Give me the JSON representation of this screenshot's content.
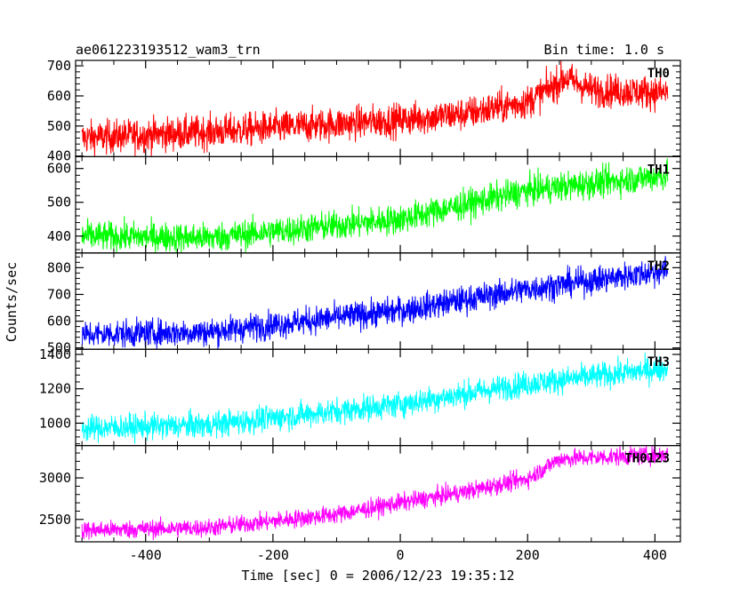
{
  "chart_data": {
    "type": "line",
    "title_left": "ae061223193512_wam3_trn",
    "title_right": "Bin time: 1.0 s",
    "xlabel": "Time [sec] 0 = 2006/12/23 19:35:12",
    "ylabel": "Counts/sec",
    "xlim": [
      -510,
      440
    ],
    "xticks": [
      -400,
      -200,
      0,
      200,
      400
    ],
    "x_range": [
      -500,
      420
    ],
    "panels": [
      {
        "name": "TH0",
        "color": "#ff0000",
        "ylim": [
          398,
          718
        ],
        "yticks": [
          400,
          500,
          600,
          700
        ],
        "trend_x": [
          -500,
          -300,
          0,
          100,
          200,
          260,
          300,
          420
        ],
        "trend_y": [
          460,
          480,
          520,
          540,
          580,
          660,
          620,
          610
        ],
        "noise": 28
      },
      {
        "name": "TH1",
        "color": "#00ff00",
        "ylim": [
          350,
          635
        ],
        "yticks": [
          400,
          500,
          600
        ],
        "trend_x": [
          -500,
          -300,
          0,
          200,
          420
        ],
        "trend_y": [
          400,
          395,
          450,
          535,
          580
        ],
        "noise": 22
      },
      {
        "name": "TH2",
        "color": "#0000ff",
        "ylim": [
          495,
          855
        ],
        "yticks": [
          500,
          600,
          700,
          800
        ],
        "trend_x": [
          -500,
          -300,
          0,
          200,
          420
        ],
        "trend_y": [
          550,
          560,
          640,
          720,
          790
        ],
        "noise": 26
      },
      {
        "name": "TH3",
        "color": "#00ffff",
        "ylim": [
          870,
          1430
        ],
        "yticks": [
          1000,
          1200,
          1400
        ],
        "trend_x": [
          -500,
          -300,
          0,
          200,
          420
        ],
        "trend_y": [
          970,
          990,
          1110,
          1230,
          1320
        ],
        "noise": 38
      },
      {
        "name": "TH0123",
        "color": "#ff00ff",
        "ylim": [
          2230,
          3390
        ],
        "yticks": [
          2500,
          3000
        ],
        "trend_x": [
          -500,
          -300,
          -100,
          0,
          100,
          200,
          250,
          420
        ],
        "trend_y": [
          2370,
          2400,
          2560,
          2700,
          2830,
          2990,
          3230,
          3280
        ],
        "noise": 55
      }
    ]
  }
}
